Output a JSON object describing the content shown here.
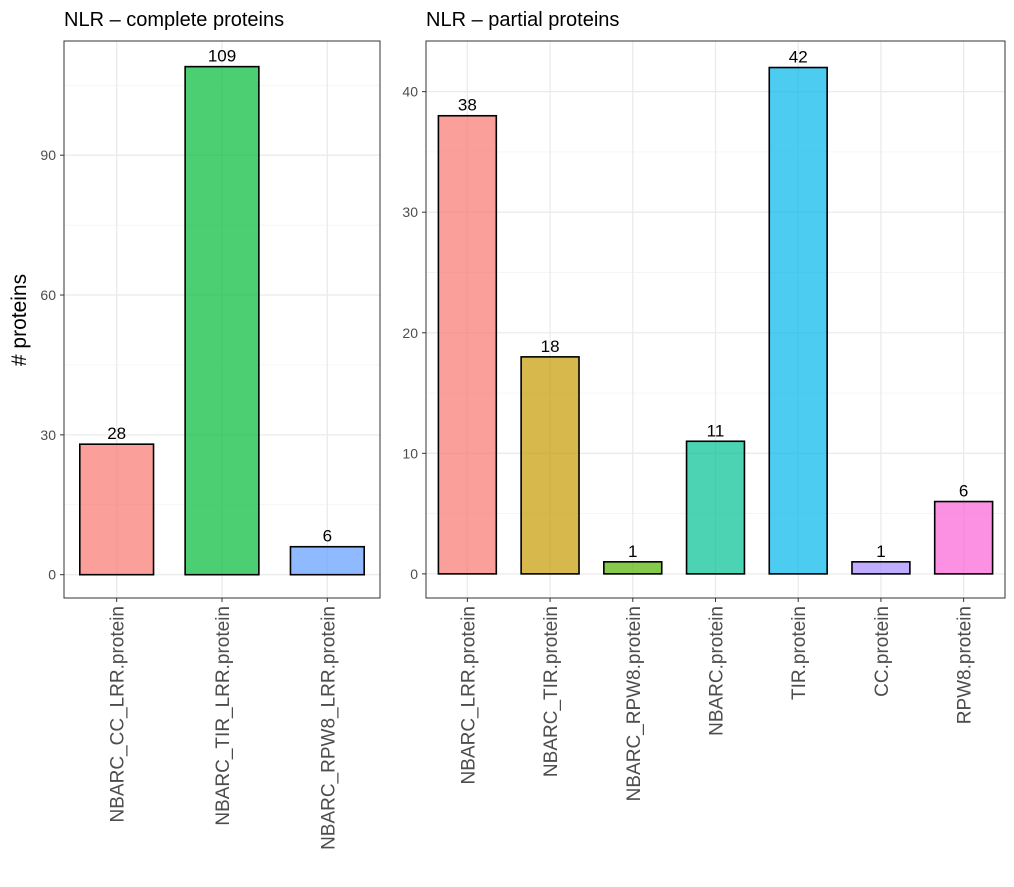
{
  "figure": {
    "ylabel": "# proteins"
  },
  "chart_data": [
    {
      "type": "bar",
      "title": "NLR – complete proteins",
      "xlabel": "",
      "ylabel": "# proteins",
      "categories": [
        "NBARC_CC_LRR.protein",
        "NBARC_TIR_LRR.protein",
        "NBARC_RPW8_LRR.protein"
      ],
      "values": [
        28,
        109,
        6
      ],
      "colors": [
        "#F8766D",
        "#00BA38",
        "#619CFF"
      ],
      "ylim": [
        -5,
        114.5
      ],
      "yticks": [
        0,
        30,
        60,
        90
      ],
      "grid": true,
      "legend": "none"
    },
    {
      "type": "bar",
      "title": "NLR – partial proteins",
      "xlabel": "",
      "ylabel": "",
      "categories": [
        "NBARC_LRR.protein",
        "NBARC_TIR.protein",
        "NBARC_RPW8.protein",
        "NBARC.protein",
        "TIR.protein",
        "CC.protein",
        "RPW8.protein"
      ],
      "values": [
        38,
        18,
        1,
        11,
        42,
        1,
        6
      ],
      "colors": [
        "#F8766D",
        "#C49A00",
        "#53B400",
        "#00C094",
        "#00B6EB",
        "#A58AFF",
        "#FB61D7"
      ],
      "ylim": [
        -2,
        44.2
      ],
      "yticks": [
        0,
        10,
        20,
        30,
        40
      ],
      "grid": true,
      "legend": "none"
    }
  ]
}
